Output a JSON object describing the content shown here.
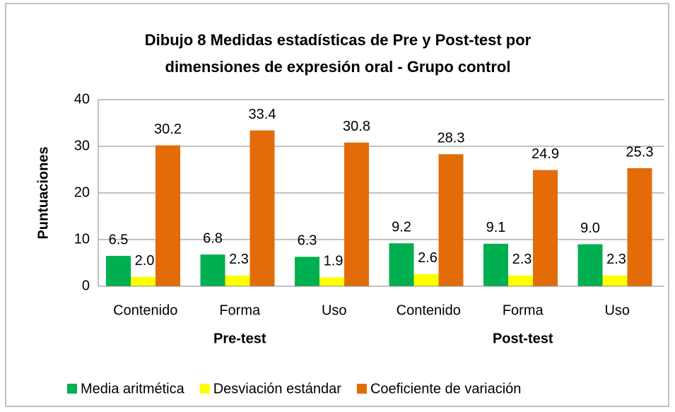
{
  "chart_data": {
    "type": "bar",
    "title": [
      "Dibujo 8 Medidas estadísticas de Pre y Post-test por",
      "dimensiones de expresión oral - Grupo control"
    ],
    "y_label": "Puntuaciones",
    "categories": [
      "Contenido",
      "Forma",
      "Uso",
      "Contenido",
      "Forma",
      "Uso"
    ],
    "category_groups": [
      "Pre-test",
      "Post-test"
    ],
    "series": [
      {
        "name": "Media aritmética",
        "color": "#00b050",
        "values": [
          6.5,
          6.8,
          6.3,
          9.2,
          9.1,
          9.0
        ],
        "value_labels": [
          "6.5",
          "6.8",
          "6.3",
          "9.2",
          "9.1",
          "9.0"
        ]
      },
      {
        "name": "Desviación estándar",
        "color": "#ffff00",
        "values": [
          2.0,
          2.3,
          1.9,
          2.6,
          2.3,
          2.3
        ],
        "value_labels": [
          "2.0",
          "2.3",
          "1.9",
          "2.6",
          "2.3",
          "2.3"
        ]
      },
      {
        "name": "Coeficiente de variación",
        "color": "#e36c09",
        "values": [
          30.2,
          33.4,
          30.8,
          28.3,
          24.9,
          25.3
        ],
        "value_labels": [
          "30.2",
          "33.4",
          "30.8",
          "28.3",
          "24.9",
          "25.3"
        ]
      }
    ],
    "ylim": [
      0,
      40
    ],
    "yticks": [
      0,
      10,
      20,
      30,
      40
    ],
    "grid": true,
    "legend": "bottom"
  }
}
